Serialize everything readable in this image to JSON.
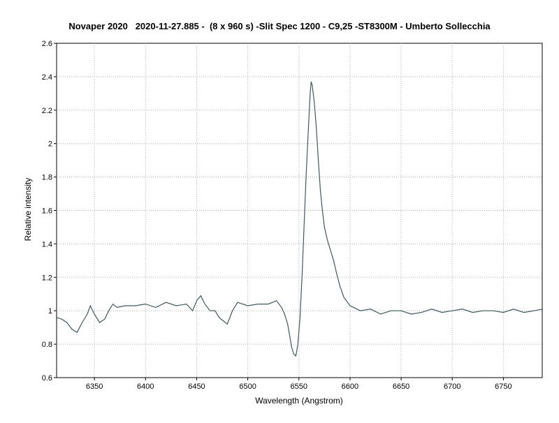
{
  "chart_data": {
    "type": "line",
    "title": "Novaper 2020   2020-11-27.885 -  (8 x 960 s) -Slit Spec 1200 - C9,25 -ST8300M - Umberto Sollecchia",
    "xlabel": "Wavelength (Angstrom)",
    "ylabel": "Relative intensity",
    "xlim": [
      6313,
      6788
    ],
    "ylim": [
      0.6,
      2.6
    ],
    "xticks": [
      6350,
      6400,
      6450,
      6500,
      6550,
      6600,
      6650,
      6700,
      6750
    ],
    "yticks": [
      0.6,
      0.8,
      1,
      1.2,
      1.4,
      1.6,
      1.8,
      2,
      2.2,
      2.4,
      2.6
    ],
    "ytick_labels": [
      "0.6",
      "0.8",
      "1",
      "1.2",
      "1.4",
      "1.6",
      "1.8",
      "2",
      "2.2",
      "2.4",
      "2.6"
    ],
    "grid": true,
    "line_color": "#3f5a5c",
    "series": [
      {
        "x": [
          6313,
          6318,
          6323,
          6328,
          6333,
          6338,
          6343,
          6346,
          6350,
          6355,
          6360,
          6364,
          6368,
          6372,
          6380,
          6390,
          6400,
          6410,
          6420,
          6430,
          6440,
          6446,
          6450,
          6454,
          6458,
          6463,
          6468,
          6472,
          6476,
          6480,
          6485,
          6490,
          6500,
          6510,
          6520,
          6528,
          6533,
          6536,
          6539,
          6541,
          6543,
          6545,
          6547,
          6549,
          6551,
          6553,
          6555,
          6557,
          6559,
          6561,
          6562,
          6563,
          6565,
          6567,
          6569,
          6571,
          6573,
          6575,
          6578,
          6581,
          6584,
          6587,
          6590,
          6594,
          6600,
          6610,
          6620,
          6630,
          6640,
          6650,
          6660,
          6670,
          6680,
          6690,
          6700,
          6710,
          6720,
          6730,
          6740,
          6750,
          6760,
          6770,
          6780,
          6788
        ],
        "y": [
          0.96,
          0.95,
          0.93,
          0.89,
          0.87,
          0.93,
          0.98,
          1.03,
          0.98,
          0.93,
          0.95,
          1.0,
          1.04,
          1.02,
          1.03,
          1.03,
          1.04,
          1.02,
          1.05,
          1.03,
          1.04,
          1.0,
          1.06,
          1.09,
          1.04,
          1.0,
          1.0,
          0.96,
          0.94,
          0.92,
          1.0,
          1.05,
          1.03,
          1.04,
          1.04,
          1.06,
          1.02,
          0.98,
          0.92,
          0.85,
          0.78,
          0.74,
          0.73,
          0.8,
          0.95,
          1.2,
          1.5,
          1.8,
          2.05,
          2.3,
          2.37,
          2.35,
          2.25,
          2.1,
          1.9,
          1.72,
          1.6,
          1.5,
          1.42,
          1.36,
          1.3,
          1.22,
          1.15,
          1.08,
          1.03,
          1.0,
          1.01,
          0.98,
          1.0,
          1.0,
          0.98,
          0.99,
          1.01,
          0.99,
          1.0,
          1.01,
          0.99,
          1.0,
          1.0,
          0.99,
          1.01,
          0.99,
          1.0,
          1.01
        ]
      }
    ]
  }
}
